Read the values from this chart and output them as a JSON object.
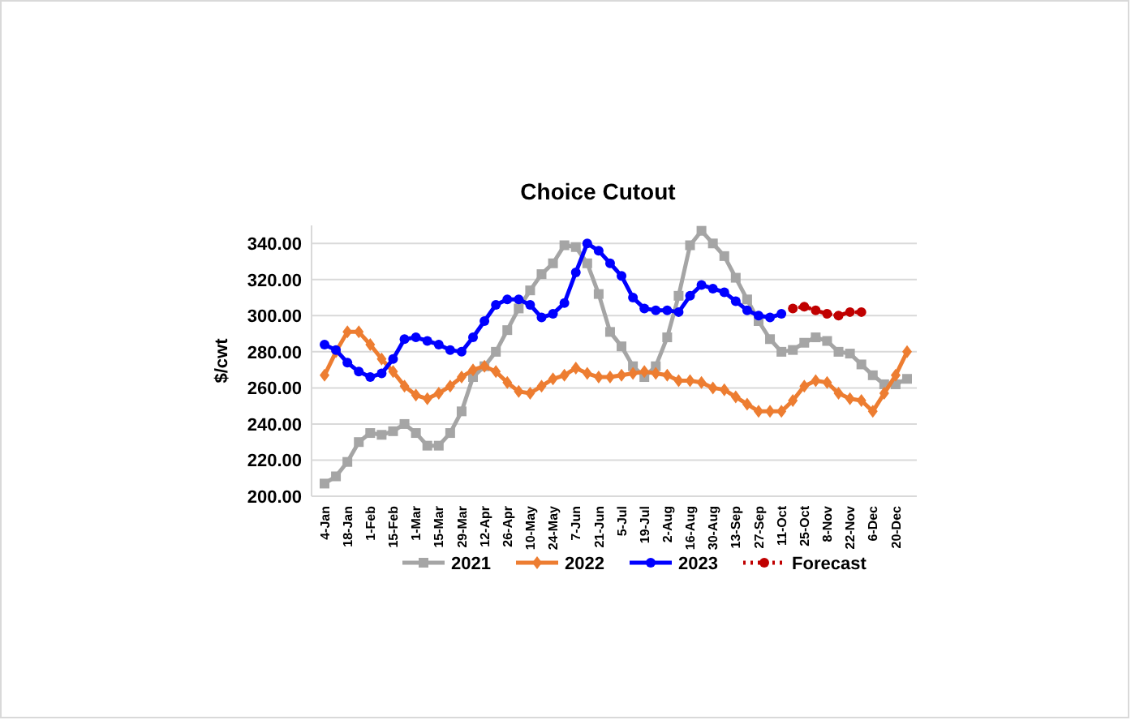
{
  "chart_data": {
    "type": "line",
    "title": "Choice Cutout",
    "ylabel": "$/cwt",
    "categories": [
      "4-Jan",
      null,
      "18-Jan",
      null,
      "1-Feb",
      null,
      "15-Feb",
      null,
      "1-Mar",
      null,
      "15-Mar",
      null,
      "29-Mar",
      null,
      "12-Apr",
      null,
      "26-Apr",
      null,
      "10-May",
      null,
      "24-May",
      null,
      "7-Jun",
      null,
      "21-Jun",
      null,
      "5-Jul",
      null,
      "19-Jul",
      null,
      "2-Aug",
      null,
      "16-Aug",
      null,
      "30-Aug",
      null,
      "13-Sep",
      null,
      "27-Sep",
      null,
      "11-Oct",
      null,
      "25-Oct",
      null,
      "8-Nov",
      null,
      "22-Nov",
      null,
      "6-Dec",
      null,
      "20-Dec",
      null
    ],
    "series": [
      {
        "name": "2021",
        "color": "#a5a5a5",
        "marker": "square",
        "line_style": "solid",
        "values": [
          207,
          211,
          219,
          230,
          235,
          234,
          236,
          240,
          235,
          228,
          228,
          235,
          247,
          266,
          272,
          280,
          292,
          304,
          314,
          323,
          329,
          339,
          338,
          329,
          312,
          291,
          283,
          272,
          266,
          272,
          288,
          311,
          339,
          347,
          340,
          333,
          321,
          309,
          297,
          287,
          280,
          281,
          285,
          288,
          286,
          280,
          279,
          273,
          267,
          262,
          262,
          265
        ]
      },
      {
        "name": "2022",
        "color": "#ed7d31",
        "marker": "diamond",
        "line_style": "solid",
        "values": [
          267,
          280,
          291,
          291,
          284,
          276,
          269,
          261,
          256,
          254,
          257,
          261,
          266,
          270,
          272,
          269,
          263,
          258,
          257,
          261,
          265,
          267,
          271,
          268,
          266,
          266,
          267,
          268,
          269,
          268,
          267,
          264,
          264,
          263,
          260,
          259,
          255,
          251,
          247,
          247,
          247,
          253,
          261,
          264,
          263,
          257,
          254,
          253,
          247,
          257,
          267,
          280
        ]
      },
      {
        "name": "2023",
        "color": "#0000ff",
        "marker": "circle",
        "line_style": "solid",
        "values": [
          284,
          281,
          274,
          269,
          266,
          268,
          276,
          287,
          288,
          286,
          284,
          281,
          280,
          288,
          297,
          306,
          309,
          309,
          306,
          299,
          301,
          307,
          324,
          340,
          336,
          329,
          322,
          310,
          304,
          303,
          303,
          302,
          311,
          317,
          315,
          313,
          308,
          303,
          300,
          299,
          301,
          null,
          null,
          null,
          null,
          null,
          null,
          null,
          null,
          null,
          null,
          null
        ]
      },
      {
        "name": "Forecast",
        "color": "#c00000",
        "marker": "circle",
        "line_style": "dotted",
        "values": [
          null,
          null,
          null,
          null,
          null,
          null,
          null,
          null,
          null,
          null,
          null,
          null,
          null,
          null,
          null,
          null,
          null,
          null,
          null,
          null,
          null,
          null,
          null,
          null,
          null,
          null,
          null,
          null,
          null,
          null,
          null,
          null,
          null,
          null,
          null,
          null,
          null,
          null,
          null,
          null,
          null,
          304,
          305,
          303,
          301,
          300,
          302,
          302,
          null,
          null,
          null,
          null
        ]
      }
    ],
    "ylim": [
      200,
      350
    ],
    "yticks": [
      {
        "value": 200,
        "label": "200.00"
      },
      {
        "value": 220,
        "label": "220.00"
      },
      {
        "value": 240,
        "label": "240.00"
      },
      {
        "value": 260,
        "label": "260.00"
      },
      {
        "value": 280,
        "label": "280.00"
      },
      {
        "value": 300,
        "label": "300.00"
      },
      {
        "value": 320,
        "label": "320.00"
      },
      {
        "value": 340,
        "label": "340.00"
      }
    ],
    "grid": "y",
    "legend": "bottom"
  }
}
